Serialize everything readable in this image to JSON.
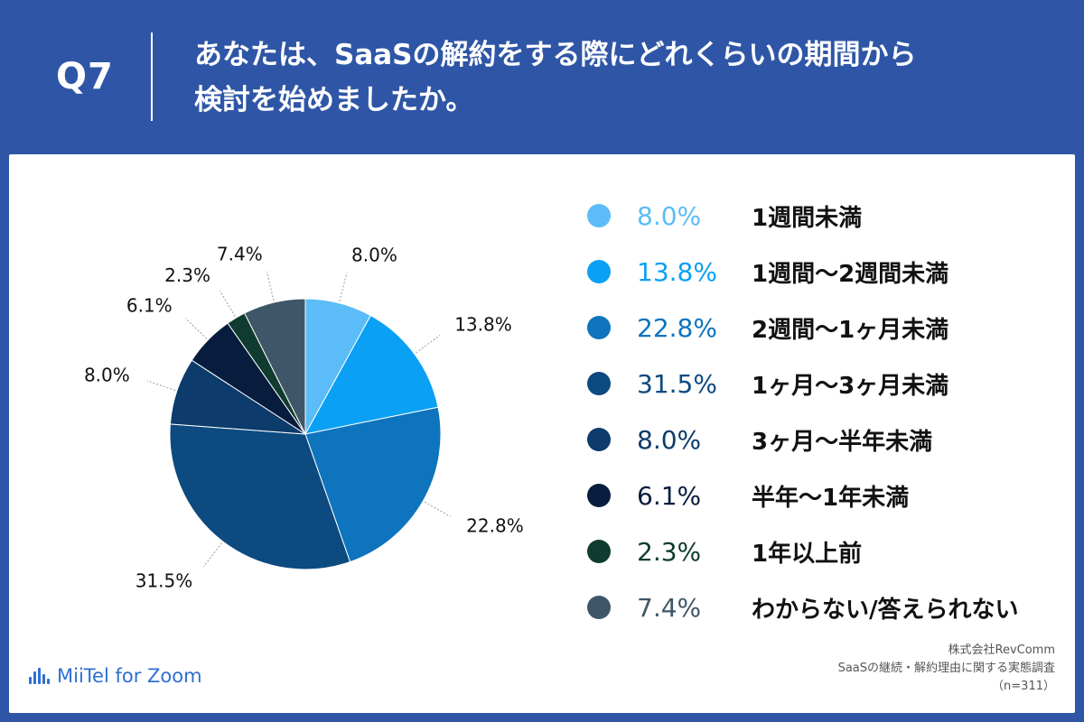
{
  "header": {
    "question_number": "Q7",
    "question_line1": "あなたは、SaaSの解約をする際にどれくらいの期間から",
    "question_line2": "検討を始めましたか。"
  },
  "chart_data": {
    "type": "pie",
    "categories": [
      "1週間未満",
      "1週間〜2週間未満",
      "2週間〜1ヶ月未満",
      "1ヶ月〜3ヶ月未満",
      "3ヶ月〜半年未満",
      "半年〜1年未満",
      "1年以上前",
      "わからない/答えられない"
    ],
    "values": [
      8.0,
      13.8,
      22.8,
      31.5,
      8.0,
      6.1,
      2.3,
      7.4
    ],
    "value_labels": [
      "8.0%",
      "13.8%",
      "22.8%",
      "31.5%",
      "8.0%",
      "6.1%",
      "2.3%",
      "7.4%"
    ],
    "colors": [
      "#5bbcf7",
      "#0aa0f4",
      "#0d74bd",
      "#0c4a7f",
      "#0c3b6c",
      "#081d3e",
      "#0f3b30",
      "#3e5768"
    ],
    "legend_placement": "right"
  },
  "legend": {
    "items": [
      {
        "pct": "8.0%",
        "label": "1週間未満"
      },
      {
        "pct": "13.8%",
        "label": "1週間〜2週間未満"
      },
      {
        "pct": "22.8%",
        "label": "2週間〜1ヶ月未満"
      },
      {
        "pct": "31.5%",
        "label": "1ヶ月〜3ヶ月未満"
      },
      {
        "pct": "8.0%",
        "label": "3ヶ月〜半年未満"
      },
      {
        "pct": "6.1%",
        "label": "半年〜1年未満"
      },
      {
        "pct": "2.3%",
        "label": "1年以上前"
      },
      {
        "pct": "7.4%",
        "label": "わからない/答えられない"
      }
    ]
  },
  "footer": {
    "brand": "MiiTel for Zoom",
    "source_line1": "株式会社RevComm",
    "source_line2": "SaaSの継続・解約理由に関する実態調査",
    "source_line3": "（n=311）"
  },
  "colors": {
    "background": "#2f56a6",
    "card": "#ffffff",
    "brand": "#2f6fd1"
  }
}
